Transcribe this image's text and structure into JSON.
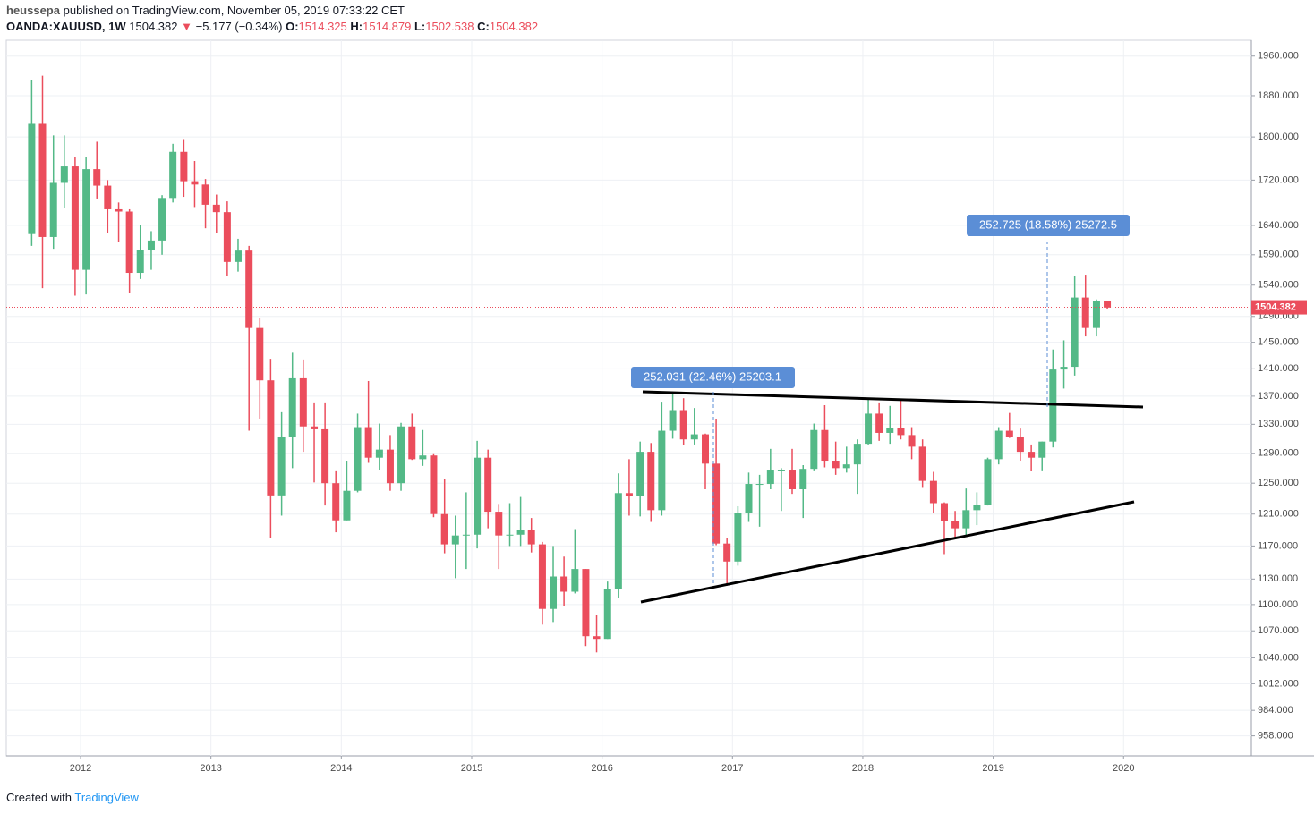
{
  "header": {
    "author": "heussepa",
    "published": "published on TradingView.com, November 05, 2019 07:33:22 CET",
    "symbol": "OANDA:XAUUSD, 1W",
    "price": "1504.382",
    "arrow": "▼",
    "change": "−5.177 (−0.34%)",
    "o_label": "O:",
    "o": "1514.325",
    "h_label": "H:",
    "h": "1514.879",
    "l_label": "L:",
    "l": "1502.538",
    "c_label": "C:",
    "c": "1504.382"
  },
  "footer": {
    "created": "Created with",
    "brand": "TradingView"
  },
  "chart_data": {
    "type": "candlestick",
    "log_scale": true,
    "grid": true,
    "up_color": "#53b987",
    "down_color": "#eb4d5c",
    "xlim": [
      2011.43,
      2020.98
    ],
    "xticks": [
      2012,
      2013,
      2014,
      2015,
      2016,
      2017,
      2018,
      2019,
      2020
    ],
    "ylim": [
      938,
      1993
    ],
    "yticks": [
      {
        "value": 1960,
        "label": "1960.000"
      },
      {
        "value": 1880,
        "label": "1880.000"
      },
      {
        "value": 1800,
        "label": "1800.000"
      },
      {
        "value": 1720,
        "label": "1720.000"
      },
      {
        "value": 1640,
        "label": "1640.000"
      },
      {
        "value": 1590,
        "label": "1590.000"
      },
      {
        "value": 1540,
        "label": "1540.000"
      },
      {
        "value": 1490,
        "label": "1490.000"
      },
      {
        "value": 1450,
        "label": "1450.000"
      },
      {
        "value": 1410,
        "label": "1410.000"
      },
      {
        "value": 1370,
        "label": "1370.000"
      },
      {
        "value": 1330,
        "label": "1330.000"
      },
      {
        "value": 1290,
        "label": "1290.000"
      },
      {
        "value": 1250,
        "label": "1250.000"
      },
      {
        "value": 1210,
        "label": "1210.000"
      },
      {
        "value": 1170,
        "label": "1170.000"
      },
      {
        "value": 1130,
        "label": "1130.000"
      },
      {
        "value": 1100,
        "label": "1100.000"
      },
      {
        "value": 1070,
        "label": "1070.000"
      },
      {
        "value": 1040,
        "label": "1040.000"
      },
      {
        "value": 1012,
        "label": "1012.000"
      },
      {
        "value": 984,
        "label": "984.000"
      },
      {
        "value": 958,
        "label": "958.000"
      }
    ],
    "last_price": 1504.382,
    "annotations": [
      "252.031 (22.46%) 25203.1",
      "252.725 (18.58%) 25272.5"
    ],
    "x": [
      2011.625,
      2011.708,
      2011.792,
      2011.875,
      2011.958,
      2012.042,
      2012.125,
      2012.208,
      2012.292,
      2012.375,
      2012.458,
      2012.542,
      2012.625,
      2012.708,
      2012.792,
      2012.875,
      2012.958,
      2013.042,
      2013.125,
      2013.208,
      2013.292,
      2013.375,
      2013.458,
      2013.542,
      2013.625,
      2013.708,
      2013.792,
      2013.875,
      2013.958,
      2014.042,
      2014.125,
      2014.208,
      2014.292,
      2014.375,
      2014.458,
      2014.542,
      2014.625,
      2014.708,
      2014.792,
      2014.875,
      2014.958,
      2015.042,
      2015.125,
      2015.208,
      2015.292,
      2015.375,
      2015.458,
      2015.542,
      2015.625,
      2015.708,
      2015.792,
      2015.875,
      2015.958,
      2016.042,
      2016.125,
      2016.208,
      2016.292,
      2016.375,
      2016.458,
      2016.542,
      2016.625,
      2016.708,
      2016.792,
      2016.875,
      2016.958,
      2017.042,
      2017.125,
      2017.208,
      2017.292,
      2017.375,
      2017.458,
      2017.542,
      2017.625,
      2017.708,
      2017.792,
      2017.875,
      2017.958,
      2018.042,
      2018.125,
      2018.208,
      2018.292,
      2018.375,
      2018.458,
      2018.542,
      2018.625,
      2018.708,
      2018.792,
      2018.875,
      2018.958,
      2019.042,
      2019.125,
      2019.208,
      2019.292,
      2019.375,
      2019.458,
      2019.542,
      2019.625,
      2019.708,
      2019.792,
      2019.875
    ],
    "open": [
      1625,
      1825,
      1620,
      1715,
      1745,
      1565,
      1740,
      1710,
      1668,
      1664,
      1560,
      1598,
      1614,
      1688,
      1772,
      1718,
      1712,
      1676,
      1663,
      1578,
      1597,
      1472,
      1393,
      1234,
      1313,
      1396,
      1327,
      1323,
      1250,
      1202,
      1240,
      1326,
      1284,
      1295,
      1250,
      1327,
      1282,
      1287,
      1210,
      1172,
      1183,
      1184,
      1284,
      1213,
      1183,
      1184,
      1190,
      1172,
      1095,
      1133,
      1115,
      1142,
      1064,
      1061,
      1118,
      1237,
      1233,
      1292,
      1215,
      1321,
      1350,
      1309,
      1316,
      1276,
      1173,
      1151,
      1211,
      1249,
      1249,
      1268,
      1268,
      1242,
      1269,
      1322,
      1280,
      1270,
      1275,
      1303,
      1345,
      1318,
      1325,
      1315,
      1299,
      1253,
      1224,
      1201,
      1192,
      1215,
      1222,
      1282,
      1321,
      1313,
      1292,
      1284,
      1306,
      1409,
      1413,
      1520,
      1472,
      1514
    ],
    "high": [
      1912,
      1920,
      1803,
      1803,
      1762,
      1763,
      1791,
      1720,
      1680,
      1668,
      1640,
      1630,
      1693,
      1787,
      1796,
      1755,
      1722,
      1694,
      1682,
      1617,
      1605,
      1487,
      1425,
      1347,
      1434,
      1424,
      1361,
      1361,
      1267,
      1280,
      1345,
      1392,
      1331,
      1315,
      1332,
      1345,
      1322,
      1290,
      1255,
      1208,
      1238,
      1307,
      1295,
      1223,
      1224,
      1232,
      1205,
      1175,
      1170,
      1157,
      1191,
      1142,
      1088,
      1127,
      1263,
      1282,
      1306,
      1304,
      1362,
      1375,
      1367,
      1353,
      1317,
      1338,
      1180,
      1220,
      1264,
      1261,
      1296,
      1270,
      1296,
      1274,
      1331,
      1357,
      1306,
      1299,
      1309,
      1366,
      1361,
      1356,
      1366,
      1326,
      1309,
      1265,
      1225,
      1214,
      1243,
      1238,
      1284,
      1326,
      1346,
      1324,
      1302,
      1306,
      1439,
      1453,
      1555,
      1557,
      1517,
      1515
    ],
    "low": [
      1605,
      1535,
      1600,
      1670,
      1523,
      1525,
      1687,
      1627,
      1612,
      1527,
      1550,
      1565,
      1590,
      1680,
      1690,
      1672,
      1635,
      1627,
      1555,
      1562,
      1321,
      1338,
      1180,
      1208,
      1270,
      1292,
      1251,
      1221,
      1187,
      1202,
      1238,
      1277,
      1268,
      1240,
      1240,
      1281,
      1273,
      1206,
      1161,
      1131,
      1142,
      1167,
      1192,
      1142,
      1170,
      1170,
      1162,
      1077,
      1080,
      1098,
      1113,
      1053,
      1046,
      1061,
      1108,
      1208,
      1207,
      1200,
      1208,
      1310,
      1301,
      1302,
      1242,
      1171,
      1122,
      1146,
      1200,
      1194,
      1242,
      1214,
      1236,
      1205,
      1267,
      1271,
      1261,
      1264,
      1236,
      1302,
      1307,
      1303,
      1309,
      1282,
      1245,
      1211,
      1160,
      1180,
      1182,
      1196,
      1221,
      1275,
      1311,
      1280,
      1266,
      1267,
      1298,
      1381,
      1400,
      1459,
      1459,
      1502
    ],
    "close": [
      1825,
      1620,
      1715,
      1745,
      1565,
      1740,
      1710,
      1668,
      1664,
      1560,
      1598,
      1614,
      1688,
      1772,
      1718,
      1712,
      1676,
      1663,
      1578,
      1597,
      1472,
      1393,
      1234,
      1313,
      1396,
      1327,
      1323,
      1250,
      1202,
      1240,
      1326,
      1284,
      1295,
      1250,
      1327,
      1282,
      1287,
      1210,
      1172,
      1183,
      1184,
      1284,
      1213,
      1183,
      1184,
      1190,
      1172,
      1095,
      1133,
      1115,
      1142,
      1064,
      1061,
      1118,
      1237,
      1233,
      1292,
      1215,
      1321,
      1350,
      1309,
      1316,
      1276,
      1173,
      1151,
      1211,
      1249,
      1249,
      1268,
      1268,
      1242,
      1269,
      1322,
      1280,
      1270,
      1275,
      1303,
      1345,
      1318,
      1325,
      1315,
      1299,
      1253,
      1224,
      1201,
      1192,
      1215,
      1222,
      1282,
      1321,
      1313,
      1292,
      1284,
      1306,
      1409,
      1413,
      1520,
      1472,
      1514,
      1504
    ]
  }
}
